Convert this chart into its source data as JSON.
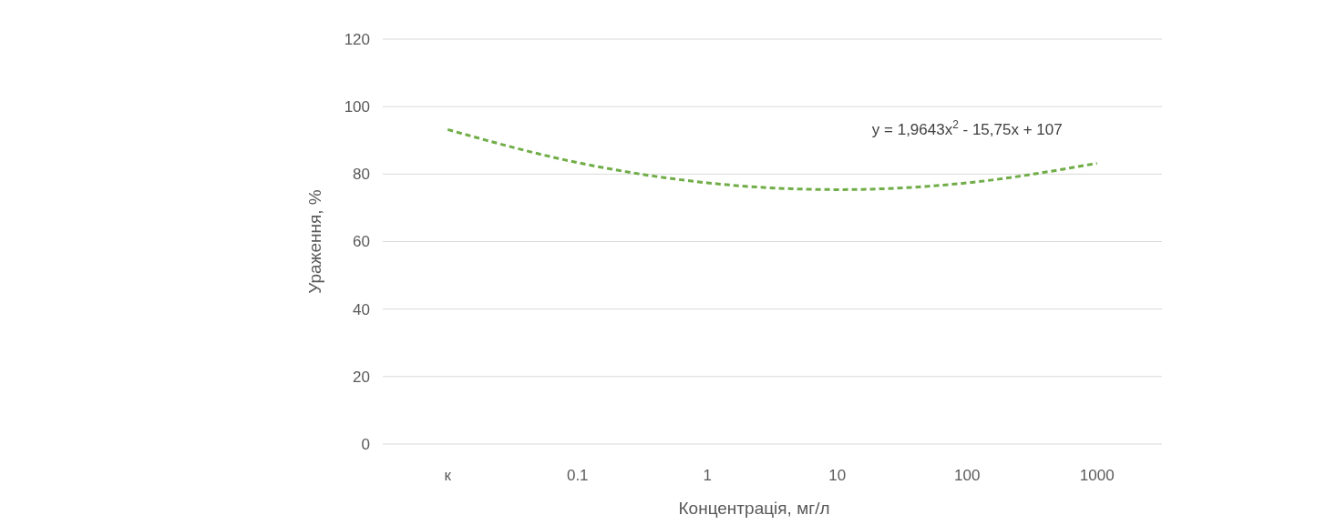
{
  "chart_data": {
    "type": "line",
    "xlabel": "Концентрація, мг/л",
    "ylabel": "Ураження, %",
    "categories": [
      "к",
      "0.1",
      "1",
      "10",
      "100",
      "1000"
    ],
    "series": [
      {
        "color": "#70ad47",
        "line_style": "dashed",
        "values": [
          93.2,
          83.4,
          77.4,
          75.4,
          77.4,
          83.2
        ]
      }
    ],
    "ylim": [
      0,
      120
    ],
    "yticks": [
      0,
      20,
      40,
      60,
      80,
      100,
      120
    ],
    "grid": "y",
    "marker": "none",
    "annotations": [
      "y = 1,9643x$^{2}$ - 15,75x + 107"
    ]
  }
}
